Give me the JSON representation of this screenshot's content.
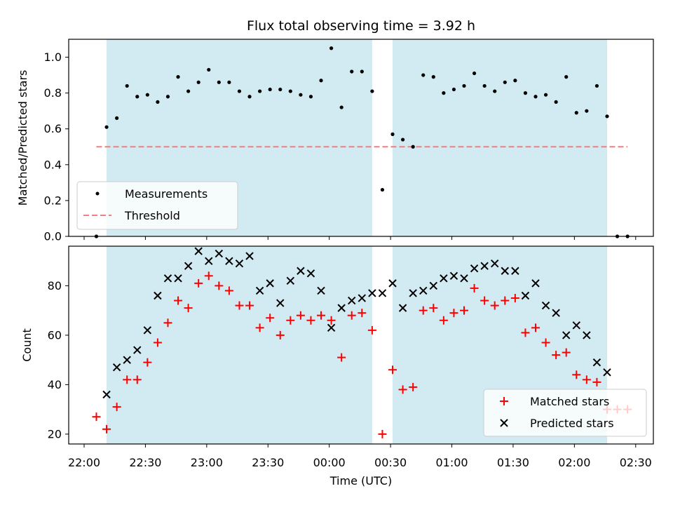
{
  "chart_data": {
    "title": "Flux total observing time = 3.92 h",
    "xlabel": "Time (UTC)",
    "x_ticks": [
      "22:00",
      "22:30",
      "23:00",
      "23:30",
      "00:00",
      "00:30",
      "01:00",
      "01:30",
      "02:00",
      "02:30"
    ],
    "x_range": [
      "22:00",
      "02:30"
    ],
    "shaded_intervals": [
      [
        "22:11",
        "00:21"
      ],
      [
        "00:31",
        "02:16"
      ]
    ],
    "shade_color": "#add8e6",
    "panels": [
      {
        "type": "scatter",
        "ylabel": "Matched/Predicted stars",
        "ylim": [
          0,
          1.1
        ],
        "yticks": [
          "0.0",
          "0.2",
          "0.4",
          "0.6",
          "0.8",
          "1.0"
        ],
        "legend_position": "lower-left",
        "threshold": {
          "name": "Threshold",
          "value": 0.5,
          "x_range": [
            "22:06",
            "02:26"
          ],
          "color": "#f08080"
        },
        "series": [
          {
            "name": "Measurements",
            "marker": "dot",
            "color": "#000000",
            "points": [
              [
                "22:06",
                0.0
              ],
              [
                "22:11",
                0.61
              ],
              [
                "22:16",
                0.66
              ],
              [
                "22:21",
                0.84
              ],
              [
                "22:26",
                0.78
              ],
              [
                "22:31",
                0.79
              ],
              [
                "22:36",
                0.75
              ],
              [
                "22:41",
                0.78
              ],
              [
                "22:46",
                0.89
              ],
              [
                "22:51",
                0.81
              ],
              [
                "22:56",
                0.86
              ],
              [
                "23:01",
                0.93
              ],
              [
                "23:06",
                0.86
              ],
              [
                "23:11",
                0.86
              ],
              [
                "23:16",
                0.81
              ],
              [
                "23:21",
                0.78
              ],
              [
                "23:26",
                0.81
              ],
              [
                "23:31",
                0.82
              ],
              [
                "23:36",
                0.82
              ],
              [
                "23:41",
                0.81
              ],
              [
                "23:46",
                0.79
              ],
              [
                "23:51",
                0.78
              ],
              [
                "23:56",
                0.87
              ],
              [
                "00:01",
                1.05
              ],
              [
                "00:06",
                0.72
              ],
              [
                "00:11",
                0.92
              ],
              [
                "00:16",
                0.92
              ],
              [
                "00:21",
                0.81
              ],
              [
                "00:26",
                0.26
              ],
              [
                "00:31",
                0.57
              ],
              [
                "00:36",
                0.54
              ],
              [
                "00:41",
                0.5
              ],
              [
                "00:46",
                0.9
              ],
              [
                "00:51",
                0.89
              ],
              [
                "00:56",
                0.8
              ],
              [
                "01:01",
                0.82
              ],
              [
                "01:06",
                0.84
              ],
              [
                "01:11",
                0.91
              ],
              [
                "01:16",
                0.84
              ],
              [
                "01:21",
                0.81
              ],
              [
                "01:26",
                0.86
              ],
              [
                "01:31",
                0.87
              ],
              [
                "01:36",
                0.8
              ],
              [
                "01:41",
                0.78
              ],
              [
                "01:46",
                0.79
              ],
              [
                "01:51",
                0.75
              ],
              [
                "01:56",
                0.89
              ],
              [
                "02:01",
                0.69
              ],
              [
                "02:06",
                0.7
              ],
              [
                "02:11",
                0.84
              ],
              [
                "02:16",
                0.67
              ],
              [
                "02:21",
                0.0
              ],
              [
                "02:26",
                0.0
              ]
            ]
          }
        ]
      },
      {
        "type": "scatter",
        "ylabel": "Count",
        "ylim": [
          16,
          96
        ],
        "yticks": [
          "20",
          "40",
          "60",
          "80"
        ],
        "legend_position": "lower-right",
        "series": [
          {
            "name": "Matched stars",
            "marker": "plus",
            "color": "#ff0000",
            "points": [
              [
                "22:06",
                27
              ],
              [
                "22:11",
                22
              ],
              [
                "22:16",
                31
              ],
              [
                "22:21",
                42
              ],
              [
                "22:26",
                42
              ],
              [
                "22:31",
                49
              ],
              [
                "22:36",
                57
              ],
              [
                "22:41",
                65
              ],
              [
                "22:46",
                74
              ],
              [
                "22:51",
                71
              ],
              [
                "22:56",
                81
              ],
              [
                "23:01",
                84
              ],
              [
                "23:06",
                80
              ],
              [
                "23:11",
                78
              ],
              [
                "23:16",
                72
              ],
              [
                "23:21",
                72
              ],
              [
                "23:26",
                63
              ],
              [
                "23:31",
                67
              ],
              [
                "23:36",
                60
              ],
              [
                "23:41",
                66
              ],
              [
                "23:46",
                68
              ],
              [
                "23:51",
                66
              ],
              [
                "23:56",
                68
              ],
              [
                "00:01",
                66
              ],
              [
                "00:06",
                51
              ],
              [
                "00:11",
                68
              ],
              [
                "00:16",
                69
              ],
              [
                "00:21",
                62
              ],
              [
                "00:26",
                20
              ],
              [
                "00:31",
                46
              ],
              [
                "00:36",
                38
              ],
              [
                "00:41",
                39
              ],
              [
                "00:46",
                70
              ],
              [
                "00:51",
                71
              ],
              [
                "00:56",
                66
              ],
              [
                "01:01",
                69
              ],
              [
                "01:06",
                70
              ],
              [
                "01:11",
                79
              ],
              [
                "01:16",
                74
              ],
              [
                "01:21",
                72
              ],
              [
                "01:26",
                74
              ],
              [
                "01:31",
                75
              ],
              [
                "01:36",
                61
              ],
              [
                "01:41",
                63
              ],
              [
                "01:46",
                57
              ],
              [
                "01:51",
                52
              ],
              [
                "01:56",
                53
              ],
              [
                "02:01",
                44
              ],
              [
                "02:06",
                42
              ],
              [
                "02:11",
                41
              ],
              [
                "02:16",
                30
              ],
              [
                "02:21",
                30
              ],
              [
                "02:26",
                30
              ]
            ]
          },
          {
            "name": "Predicted stars",
            "marker": "x",
            "color": "#000000",
            "points": [
              [
                "22:11",
                36
              ],
              [
                "22:16",
                47
              ],
              [
                "22:21",
                50
              ],
              [
                "22:26",
                54
              ],
              [
                "22:31",
                62
              ],
              [
                "22:36",
                76
              ],
              [
                "22:41",
                83
              ],
              [
                "22:46",
                83
              ],
              [
                "22:51",
                88
              ],
              [
                "22:56",
                94
              ],
              [
                "23:01",
                90
              ],
              [
                "23:06",
                93
              ],
              [
                "23:11",
                90
              ],
              [
                "23:16",
                89
              ],
              [
                "23:21",
                92
              ],
              [
                "23:26",
                78
              ],
              [
                "23:31",
                81
              ],
              [
                "23:36",
                73
              ],
              [
                "23:41",
                82
              ],
              [
                "23:46",
                86
              ],
              [
                "23:51",
                85
              ],
              [
                "23:56",
                78
              ],
              [
                "00:01",
                63
              ],
              [
                "00:06",
                71
              ],
              [
                "00:11",
                74
              ],
              [
                "00:16",
                75
              ],
              [
                "00:21",
                77
              ],
              [
                "00:26",
                77
              ],
              [
                "00:31",
                81
              ],
              [
                "00:36",
                71
              ],
              [
                "00:41",
                77
              ],
              [
                "00:46",
                78
              ],
              [
                "00:51",
                80
              ],
              [
                "00:56",
                83
              ],
              [
                "01:01",
                84
              ],
              [
                "01:06",
                83
              ],
              [
                "01:11",
                87
              ],
              [
                "01:16",
                88
              ],
              [
                "01:21",
                89
              ],
              [
                "01:26",
                86
              ],
              [
                "01:31",
                86
              ],
              [
                "01:36",
                76
              ],
              [
                "01:41",
                81
              ],
              [
                "01:46",
                72
              ],
              [
                "01:51",
                69
              ],
              [
                "01:56",
                60
              ],
              [
                "02:01",
                64
              ],
              [
                "02:06",
                60
              ],
              [
                "02:11",
                49
              ],
              [
                "02:16",
                45
              ]
            ]
          }
        ]
      }
    ]
  }
}
